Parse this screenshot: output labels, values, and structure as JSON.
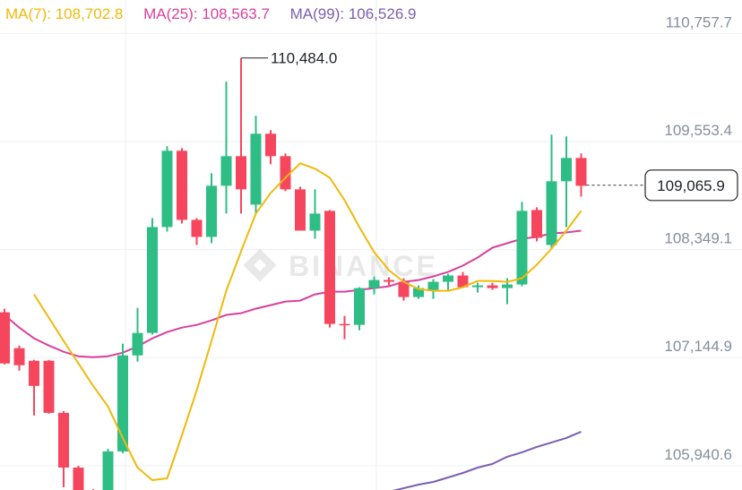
{
  "legend": {
    "ma7": "MA(7): 108,702.8",
    "ma25": "MA(25): 108,563.7",
    "ma99": "MA(99): 106,526.9"
  },
  "colors": {
    "up": "#2ebd85",
    "down": "#f6465d",
    "ma7": "#f0b90b",
    "ma25": "#d9409d",
    "ma99": "#7b5fb0",
    "grid": "#eef0f2",
    "axis_text": "#848e9c"
  },
  "watermark": "BINANCE",
  "chart_data": {
    "type": "candlestick",
    "y_ticks": [
      {
        "label": "110,757.7",
        "value": 110757.7
      },
      {
        "label": "109,553.4",
        "value": 109553.4
      },
      {
        "label": "108,349.1",
        "value": 108349.1
      },
      {
        "label": "107,144.9",
        "value": 107144.9
      },
      {
        "label": "105,940.6",
        "value": 105940.6
      }
    ],
    "ylim": [
      105670,
      111130
    ],
    "current_price": {
      "label": "109,065.9",
      "value": 109065.9
    },
    "high_marker": {
      "label": "110,484.0",
      "value": 110484.0
    },
    "candles": [
      {
        "o": 107650,
        "h": 107690,
        "l": 107070,
        "c": 107080
      },
      {
        "o": 107250,
        "h": 107280,
        "l": 107000,
        "c": 107060
      },
      {
        "o": 107110,
        "h": 107120,
        "l": 106500,
        "c": 106830
      },
      {
        "o": 107110,
        "h": 107120,
        "l": 106520,
        "c": 106530
      },
      {
        "o": 106530,
        "h": 106550,
        "l": 105700,
        "c": 105920
      },
      {
        "o": 105920,
        "h": 105940,
        "l": 105600,
        "c": 105650
      },
      {
        "o": 105630,
        "h": 105680,
        "l": 105600,
        "c": 105620
      },
      {
        "o": 105620,
        "h": 106130,
        "l": 105600,
        "c": 106100
      },
      {
        "o": 106100,
        "h": 107300,
        "l": 106080,
        "c": 107170
      },
      {
        "o": 107170,
        "h": 107700,
        "l": 107100,
        "c": 107420
      },
      {
        "o": 107420,
        "h": 108700,
        "l": 107400,
        "c": 108600
      },
      {
        "o": 108600,
        "h": 109500,
        "l": 108550,
        "c": 109450
      },
      {
        "o": 109450,
        "h": 109480,
        "l": 108640,
        "c": 108680
      },
      {
        "o": 108680,
        "h": 108700,
        "l": 108400,
        "c": 108490
      },
      {
        "o": 108490,
        "h": 109200,
        "l": 108420,
        "c": 109060
      },
      {
        "o": 109060,
        "h": 110220,
        "l": 108750,
        "c": 109390
      },
      {
        "o": 109390,
        "h": 110484,
        "l": 108750,
        "c": 109020
      },
      {
        "o": 108850,
        "h": 109840,
        "l": 108750,
        "c": 109640
      },
      {
        "o": 109640,
        "h": 109680,
        "l": 109300,
        "c": 109390
      },
      {
        "o": 109390,
        "h": 109420,
        "l": 109000,
        "c": 109020
      },
      {
        "o": 109020,
        "h": 109050,
        "l": 108560,
        "c": 108560
      },
      {
        "o": 108560,
        "h": 109020,
        "l": 108470,
        "c": 108750
      },
      {
        "o": 108780,
        "h": 108790,
        "l": 107480,
        "c": 107520
      },
      {
        "o": 107520,
        "h": 107610,
        "l": 107350,
        "c": 107510
      },
      {
        "o": 107510,
        "h": 107930,
        "l": 107450,
        "c": 107920
      },
      {
        "o": 107920,
        "h": 108050,
        "l": 107850,
        "c": 108010
      },
      {
        "o": 108010,
        "h": 108040,
        "l": 107950,
        "c": 107990
      },
      {
        "o": 107990,
        "h": 108030,
        "l": 107780,
        "c": 107820
      },
      {
        "o": 107820,
        "h": 107950,
        "l": 107800,
        "c": 107920
      },
      {
        "o": 107900,
        "h": 108020,
        "l": 107800,
        "c": 107990
      },
      {
        "o": 107990,
        "h": 108080,
        "l": 107900,
        "c": 108060
      },
      {
        "o": 108060,
        "h": 108100,
        "l": 107920,
        "c": 107930
      },
      {
        "o": 107930,
        "h": 107980,
        "l": 107870,
        "c": 107950
      },
      {
        "o": 107950,
        "h": 107980,
        "l": 107900,
        "c": 107920
      },
      {
        "o": 107920,
        "h": 108030,
        "l": 107740,
        "c": 107960
      },
      {
        "o": 107960,
        "h": 108880,
        "l": 107940,
        "c": 108780
      },
      {
        "o": 108790,
        "h": 108820,
        "l": 108440,
        "c": 108480
      },
      {
        "o": 108400,
        "h": 109630,
        "l": 108360,
        "c": 109110
      },
      {
        "o": 109110,
        "h": 109610,
        "l": 108600,
        "c": 109370
      },
      {
        "o": 109370,
        "h": 109420,
        "l": 108940,
        "c": 109060
      }
    ],
    "ma7": [
      107850,
      107590,
      107330,
      107080,
      106830,
      106600,
      106250,
      105920,
      105780,
      105800,
      106280,
      106780,
      107330,
      107890,
      108330,
      108750,
      108980,
      109150,
      109310,
      109250,
      109150,
      108900,
      108600,
      108320,
      108120,
      107990,
      107910,
      107890,
      107890,
      107930,
      108000,
      108000,
      107990,
      108030,
      108180,
      108360,
      108560,
      108780
    ],
    "ma25": [
      107620,
      107480,
      107360,
      107280,
      107210,
      107160,
      107150,
      107160,
      107200,
      107270,
      107360,
      107430,
      107480,
      107510,
      107560,
      107620,
      107640,
      107690,
      107730,
      107770,
      107780,
      107850,
      107880,
      107880,
      107900,
      107920,
      107940,
      107990,
      108010,
      108050,
      108100,
      108170,
      108260,
      108370,
      108420,
      108470,
      108490,
      108530,
      108540,
      108560
    ],
    "ma99": [
      105430,
      105500,
      105530,
      105555,
      105580,
      105610,
      105650,
      105690,
      105730,
      105760,
      105810,
      105860,
      105920,
      105960,
      106040,
      106090,
      106150,
      106200,
      106250,
      106320
    ]
  }
}
